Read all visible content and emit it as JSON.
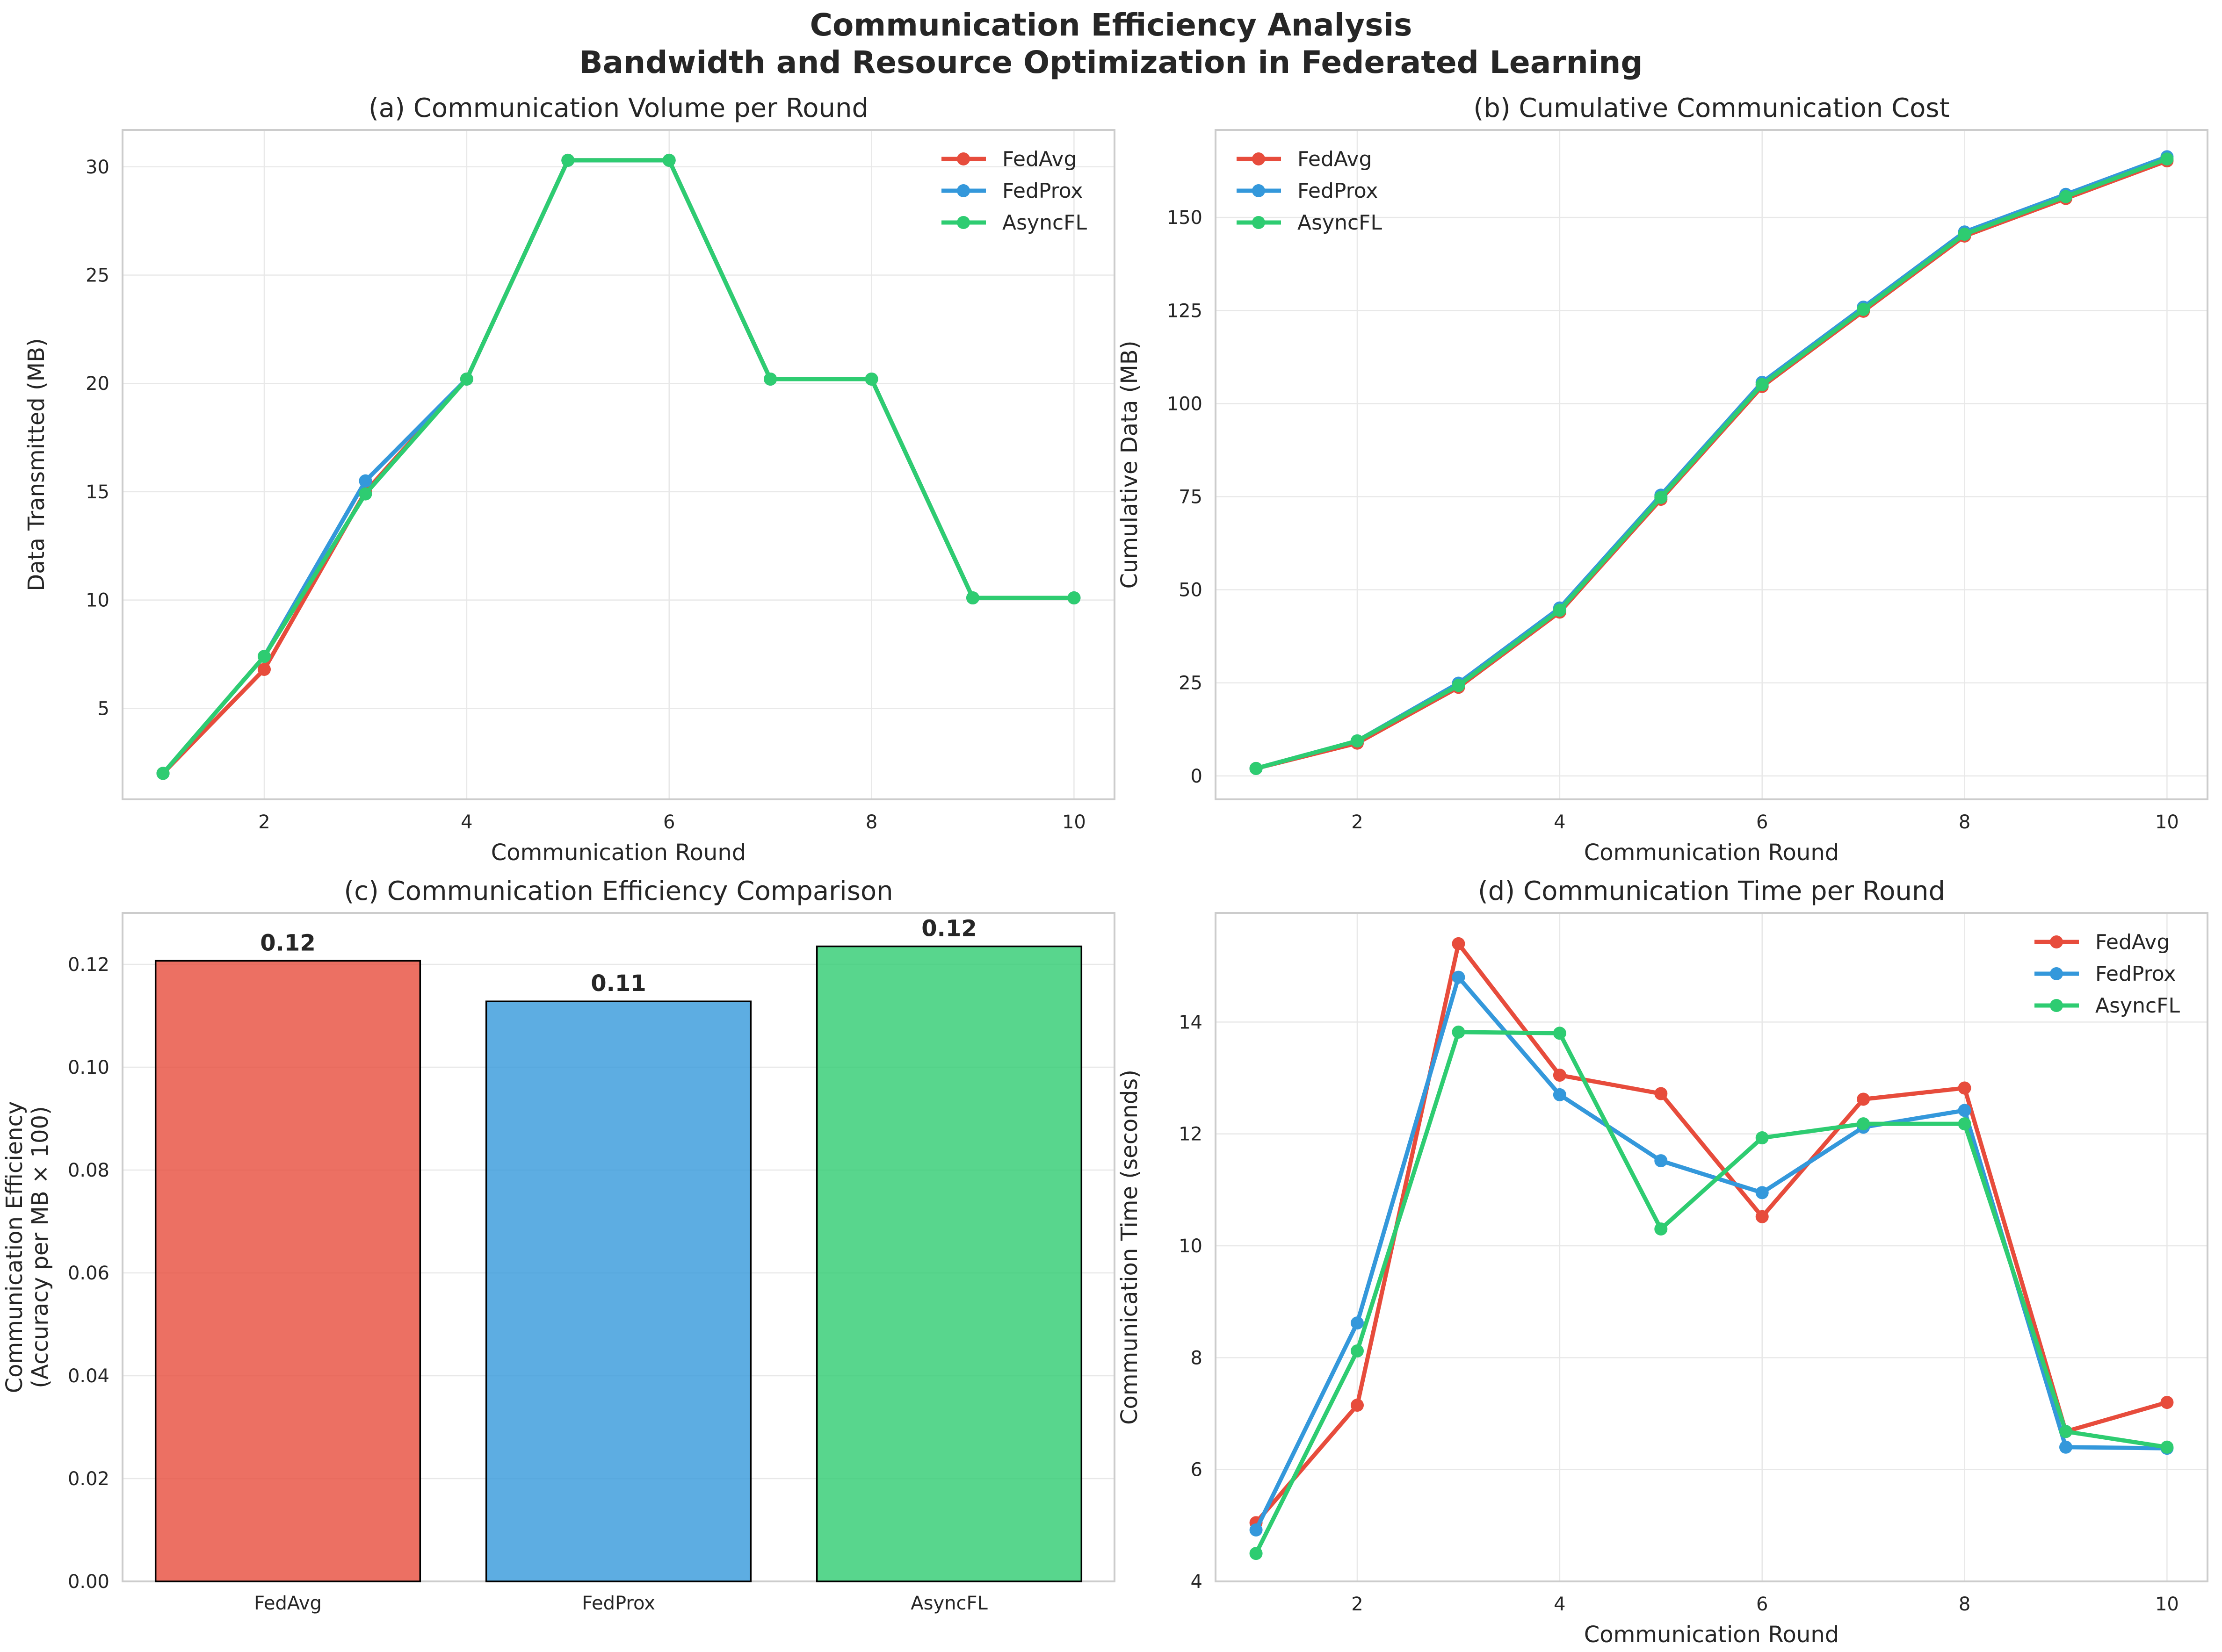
{
  "figure": {
    "title_line1": "Communication Efficiency Analysis",
    "title_line2": "Bandwidth and Resource Optimization in Federated Learning"
  },
  "colors": {
    "FedAvg": "#e74c3c",
    "FedProx": "#3498db",
    "AsyncFL": "#2ecc71"
  },
  "chart_data": [
    {
      "id": "a",
      "type": "line",
      "title": "(a) Communication Volume per Round",
      "xlabel": "Communication Round",
      "ylabel": "Data Transmitted (MB)",
      "x": [
        1,
        2,
        3,
        4,
        5,
        6,
        7,
        8,
        9,
        10
      ],
      "xlim": [
        0.6,
        10.4
      ],
      "ylim": [
        0.8,
        31.7
      ],
      "xticks": [
        2,
        4,
        6,
        8,
        10
      ],
      "yticks": [
        5,
        10,
        15,
        20,
        25,
        30
      ],
      "grid": true,
      "legend": "top-right",
      "series": [
        {
          "name": "FedAvg",
          "values": [
            2.0,
            6.8,
            15.0,
            20.2,
            30.3,
            30.3,
            20.2,
            20.2,
            10.1,
            10.1
          ]
        },
        {
          "name": "FedProx",
          "values": [
            2.0,
            7.4,
            15.5,
            20.2,
            30.3,
            30.3,
            20.2,
            20.2,
            10.1,
            10.1
          ]
        },
        {
          "name": "AsyncFL",
          "values": [
            2.0,
            7.4,
            14.9,
            20.2,
            30.3,
            30.3,
            20.2,
            20.2,
            10.1,
            10.1
          ]
        }
      ]
    },
    {
      "id": "b",
      "type": "line",
      "title": "(b) Cumulative Communication Cost",
      "xlabel": "Communication Round",
      "ylabel": "Cumulative Data (MB)",
      "x": [
        1,
        2,
        3,
        4,
        5,
        6,
        7,
        8,
        9,
        10
      ],
      "xlim": [
        0.6,
        10.4
      ],
      "ylim": [
        -6.3,
        173.5
      ],
      "xticks": [
        2,
        4,
        6,
        8,
        10
      ],
      "yticks": [
        0,
        25,
        50,
        75,
        100,
        125,
        150
      ],
      "grid": true,
      "legend": "top-left",
      "series": [
        {
          "name": "FedAvg",
          "values": [
            2.0,
            8.8,
            23.8,
            44.0,
            74.3,
            104.6,
            124.8,
            145.0,
            155.1,
            165.2
          ]
        },
        {
          "name": "FedProx",
          "values": [
            2.0,
            9.4,
            24.9,
            45.1,
            75.4,
            105.7,
            125.9,
            146.1,
            156.2,
            166.3
          ]
        },
        {
          "name": "AsyncFL",
          "values": [
            2.0,
            9.4,
            24.3,
            44.5,
            74.8,
            105.1,
            125.3,
            145.5,
            155.6,
            165.7
          ]
        }
      ]
    },
    {
      "id": "c",
      "type": "bar",
      "title": "(c) Communication Efficiency Comparison",
      "xlabel": "",
      "ylabel_line1": "Communication Efficiency",
      "ylabel_line2": "(Accuracy per MB × 100)",
      "categories": [
        "FedAvg",
        "FedProx",
        "AsyncFL"
      ],
      "values": [
        0.1207,
        0.1128,
        0.1235
      ],
      "data_labels": [
        "0.12",
        "0.11",
        "0.12"
      ],
      "ylim": [
        0,
        0.13
      ],
      "yticks": [
        "0.00",
        "0.02",
        "0.04",
        "0.06",
        "0.08",
        "0.10",
        "0.12"
      ],
      "grid": true
    },
    {
      "id": "d",
      "type": "line",
      "title": "(d) Communication Time per Round",
      "xlabel": "Communication Round",
      "ylabel": "Communication Time (seconds)",
      "x": [
        1,
        2,
        3,
        4,
        5,
        6,
        7,
        8,
        9,
        10
      ],
      "xlim": [
        0.6,
        10.4
      ],
      "ylim": [
        4.0,
        15.95
      ],
      "xticks": [
        2,
        4,
        6,
        8,
        10
      ],
      "yticks": [
        4,
        6,
        8,
        10,
        12,
        14
      ],
      "grid": true,
      "legend": "top-right",
      "series": [
        {
          "name": "FedAvg",
          "values": [
            5.05,
            7.15,
            15.4,
            13.05,
            12.72,
            10.52,
            12.62,
            12.82,
            6.68,
            7.2
          ]
        },
        {
          "name": "FedProx",
          "values": [
            4.92,
            8.62,
            14.8,
            12.7,
            11.52,
            10.95,
            12.12,
            12.42,
            6.4,
            6.38
          ]
        },
        {
          "name": "AsyncFL",
          "values": [
            4.5,
            8.12,
            13.82,
            13.8,
            10.3,
            11.93,
            12.18,
            12.18,
            6.68,
            6.4
          ]
        }
      ]
    }
  ]
}
